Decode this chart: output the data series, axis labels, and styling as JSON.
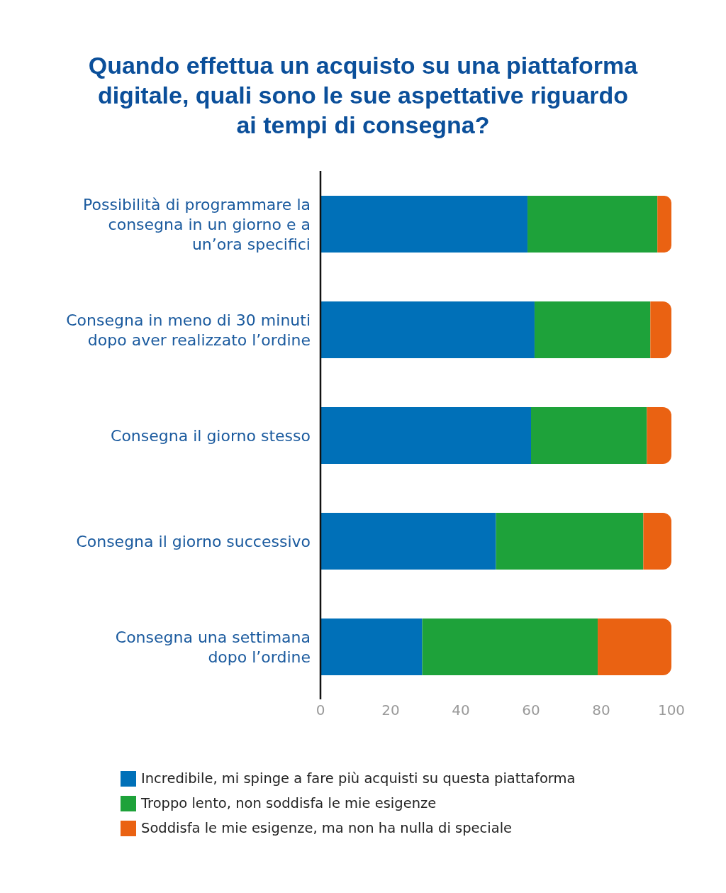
{
  "chart_data": {
    "type": "bar",
    "orientation": "horizontal",
    "stacked": true,
    "title": "Quando effettua un acquisto su una piattaforma digitale, quali sono le sue aspettative riguardo ai tempi di consegna?",
    "categories": [
      "Possibilità di programmare la consegna in un giorno e a un’ora specifici",
      "Consegna in meno di 30 minuti dopo aver realizzato l’ordine",
      "Consegna il giorno stesso",
      "Consegna il giorno successivo",
      "Consegna una settimana dopo l’ordine"
    ],
    "series": [
      {
        "name": "Incredibile, mi spinge a fare più acquisti su questa piattaforma",
        "color": "#0070b8",
        "values": [
          59,
          61,
          60,
          50,
          29
        ]
      },
      {
        "name": "Troppo lento, non soddisfa le mie esigenze",
        "color": "#1ea23a",
        "values": [
          37,
          33,
          33,
          42,
          50
        ]
      },
      {
        "name": "Soddisfa le mie esigenze, ma non ha nulla di speciale",
        "color": "#ea6212",
        "values": [
          4,
          6,
          7,
          8,
          21
        ]
      }
    ],
    "xlim": [
      0,
      100
    ],
    "xticks": [
      0,
      20,
      40,
      60,
      80,
      100
    ],
    "legend": "bottom"
  }
}
